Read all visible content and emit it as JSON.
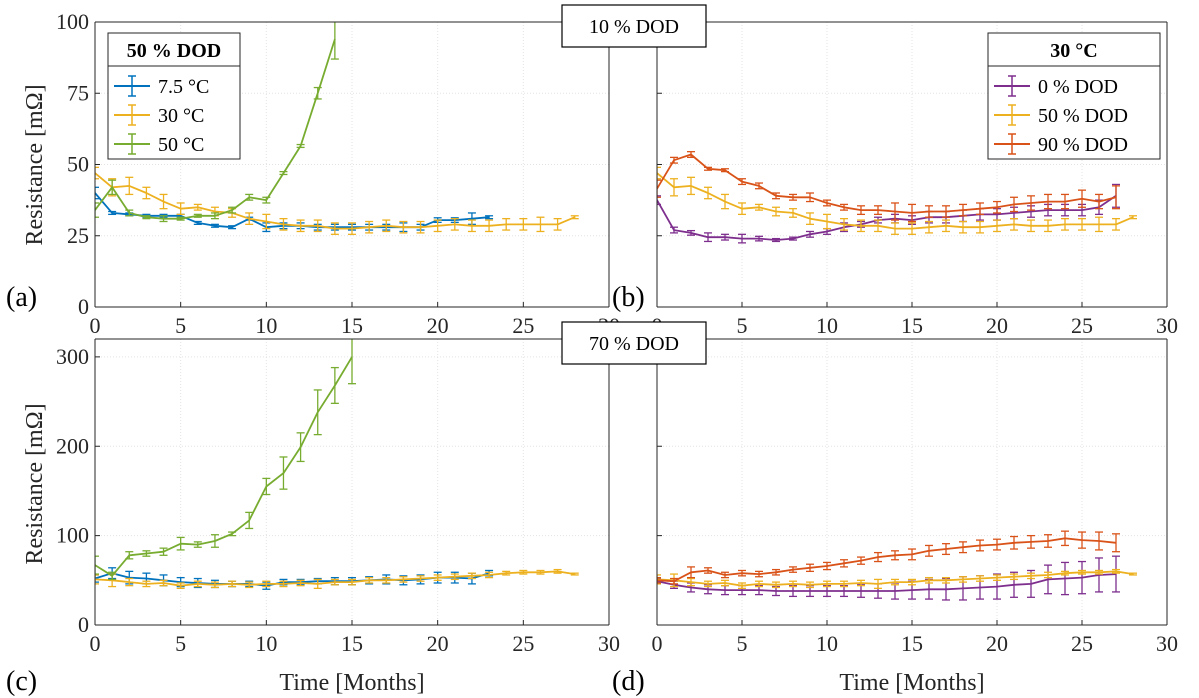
{
  "panel_letters": [
    "(a)",
    "(b)",
    "(c)",
    "(d)"
  ],
  "row_titles": [
    "10 % DOD",
    "70 % DOD"
  ],
  "colors": {
    "blue": "#0072BD",
    "yellow": "#EDB120",
    "green": "#77AC30",
    "orange": "#D95319",
    "purple": "#7E2F8E"
  },
  "chart_data": [
    {
      "type": "line",
      "panel": "(a)",
      "xlabel": "",
      "ylabel": "Resistance [mΩ]",
      "xlim": [
        0,
        30
      ],
      "ylim": [
        0,
        100
      ],
      "xticks": [
        0,
        5,
        10,
        15,
        20,
        25,
        30
      ],
      "yticks": [
        0,
        25,
        50,
        75,
        100
      ],
      "grid": true,
      "legend": {
        "title": "50 % DOD",
        "placement": "top-left"
      },
      "series": [
        {
          "name": "7.5 °C",
          "color": "#0072BD",
          "x": [
            0,
            1,
            2,
            3,
            4,
            5,
            6,
            7,
            8,
            9,
            10,
            11,
            12,
            13,
            14,
            15,
            16,
            17,
            18,
            19,
            20,
            21,
            22,
            23
          ],
          "y": [
            40,
            33,
            32.5,
            32,
            32,
            32,
            29.5,
            28.5,
            28,
            31,
            28,
            28.5,
            28.5,
            28,
            28,
            28,
            28,
            28,
            28,
            28,
            30.5,
            30.5,
            31,
            31.5
          ],
          "err": [
            2,
            0.5,
            0.5,
            0.5,
            0.5,
            0.5,
            0.5,
            0.5,
            0.5,
            0.5,
            1.5,
            1,
            1,
            1,
            1,
            1,
            1,
            1,
            1.5,
            1,
            0.8,
            0.8,
            2,
            0.5
          ]
        },
        {
          "name": "30 °C",
          "color": "#EDB120",
          "x": [
            0,
            1,
            2,
            3,
            4,
            5,
            6,
            7,
            8,
            9,
            10,
            11,
            12,
            13,
            14,
            15,
            16,
            17,
            18,
            19,
            20,
            21,
            22,
            23,
            24,
            25,
            26,
            27,
            28
          ],
          "y": [
            47,
            42,
            42.5,
            40,
            37,
            34.5,
            35,
            33.5,
            33,
            31,
            30,
            29,
            28.5,
            28.5,
            27.5,
            27.5,
            28,
            28.5,
            28,
            28,
            28.5,
            29,
            28.5,
            28.5,
            29,
            29,
            29,
            29,
            31.5
          ],
          "err": [
            2,
            3,
            3,
            2,
            2.5,
            2,
            1,
            1.5,
            1.5,
            2,
            2.5,
            2,
            2,
            2,
            2,
            2,
            2,
            2,
            2,
            2,
            2,
            2,
            2,
            2,
            2,
            2,
            2.5,
            2,
            0.5
          ]
        },
        {
          "name": "50 °C",
          "color": "#77AC30",
          "x": [
            0,
            1,
            2,
            3,
            4,
            5,
            6,
            7,
            8,
            9,
            10,
            11,
            12,
            13,
            14
          ],
          "y": [
            34,
            42,
            33,
            31.5,
            31,
            31,
            32,
            32,
            34,
            38.5,
            37.5,
            47,
            56.5,
            75,
            94
          ],
          "err": [
            2.5,
            2.5,
            1,
            0.5,
            1,
            0.5,
            0.5,
            1,
            1,
            1,
            1,
            0.5,
            0.5,
            2,
            7
          ]
        }
      ]
    },
    {
      "type": "line",
      "panel": "(b)",
      "xlabel": "",
      "ylabel": "",
      "xlim": [
        0,
        30
      ],
      "ylim": [
        0,
        100
      ],
      "xticks": [
        0,
        5,
        10,
        15,
        20,
        25,
        30
      ],
      "yticks": [
        0,
        25,
        50,
        75,
        100
      ],
      "grid": true,
      "legend": {
        "title": "30 °C",
        "placement": "top-right"
      },
      "series": [
        {
          "name": "0 % DOD",
          "color": "#7E2F8E",
          "x": [
            0,
            1,
            2,
            3,
            4,
            5,
            6,
            7,
            8,
            9,
            10,
            11,
            12,
            13,
            14,
            15,
            16,
            17,
            18,
            19,
            20,
            21,
            22,
            23,
            24,
            25,
            26,
            27
          ],
          "y": [
            37.5,
            27,
            26,
            24.5,
            24.5,
            24,
            24,
            23.5,
            24,
            25.5,
            26.5,
            28,
            29,
            30.5,
            31,
            30.5,
            31.5,
            31.5,
            32,
            32.5,
            32.5,
            33,
            33.5,
            34,
            34,
            34,
            35,
            39
          ],
          "err": [
            1.5,
            1,
            0.8,
            1.5,
            1,
            1.5,
            0.8,
            0.5,
            0.5,
            1,
            1,
            1.5,
            1,
            1,
            1.5,
            1.5,
            2,
            2,
            2,
            2,
            2,
            2,
            2,
            2,
            2,
            2,
            2.5,
            4
          ]
        },
        {
          "name": "50 % DOD",
          "color": "#EDB120",
          "x": [
            0,
            1,
            2,
            3,
            4,
            5,
            6,
            7,
            8,
            9,
            10,
            11,
            12,
            13,
            14,
            15,
            16,
            17,
            18,
            19,
            20,
            21,
            22,
            23,
            24,
            25,
            26,
            27,
            28
          ],
          "y": [
            47,
            42,
            42.5,
            40,
            37,
            34.5,
            35,
            33.5,
            33,
            31,
            30,
            29,
            28.5,
            28.5,
            27.5,
            27.5,
            28,
            28.5,
            28,
            28,
            28.5,
            29,
            28.5,
            28.5,
            29,
            29,
            29,
            29,
            31.5
          ],
          "err": [
            2,
            3,
            3,
            2,
            2.5,
            2,
            1,
            1.5,
            1.5,
            2,
            2.5,
            2,
            2,
            2,
            2,
            2,
            2,
            2,
            2,
            2,
            2,
            2,
            2,
            2,
            2,
            2,
            2.5,
            2,
            0.5
          ]
        },
        {
          "name": "90 % DOD",
          "color": "#D95319",
          "x": [
            0,
            1,
            2,
            3,
            4,
            5,
            6,
            7,
            8,
            9,
            10,
            11,
            12,
            13,
            14,
            15,
            16,
            17,
            18,
            19,
            20,
            21,
            22,
            23,
            24,
            25,
            26,
            27
          ],
          "y": [
            41.5,
            51.5,
            53.5,
            48.5,
            48,
            44,
            42.5,
            39,
            38.5,
            38.5,
            36.5,
            35,
            34,
            34,
            33.5,
            33,
            33.5,
            33.5,
            34,
            34.5,
            35,
            36,
            36.5,
            37,
            37,
            38,
            37,
            38.5
          ],
          "err": [
            3,
            1,
            1,
            0.5,
            0.5,
            1,
            1,
            1,
            1,
            1.5,
            1,
            1,
            1.5,
            1.5,
            3,
            3,
            2,
            2,
            2,
            2,
            2,
            2.5,
            2.5,
            2.5,
            2.5,
            3,
            2.5,
            4
          ]
        }
      ]
    },
    {
      "type": "line",
      "panel": "(c)",
      "xlabel": "Time [Months]",
      "ylabel": "Resistance [mΩ]",
      "xlim": [
        0,
        30
      ],
      "ylim": [
        0,
        320
      ],
      "xticks": [
        0,
        5,
        10,
        15,
        20,
        25,
        30
      ],
      "yticks": [
        0,
        100,
        200,
        300
      ],
      "grid": true,
      "series": [
        {
          "name": "",
          "color": "#0072BD",
          "x": [
            0,
            1,
            2,
            3,
            4,
            5,
            6,
            7,
            8,
            9,
            10,
            11,
            12,
            13,
            14,
            15,
            16,
            17,
            18,
            19,
            20,
            21,
            22,
            23
          ],
          "y": [
            52,
            58,
            53,
            52,
            50,
            48,
            47,
            46,
            46,
            46,
            44,
            48,
            48,
            49,
            49,
            49,
            50,
            51,
            50,
            51,
            53,
            53,
            52,
            58
          ],
          "err": [
            4,
            6,
            7,
            6,
            6,
            5,
            5,
            4,
            3,
            3,
            4,
            3,
            3,
            3,
            4,
            4,
            4,
            5,
            5,
            5,
            6,
            6,
            6,
            3
          ]
        },
        {
          "name": "",
          "color": "#EDB120",
          "x": [
            0,
            1,
            2,
            3,
            4,
            5,
            6,
            7,
            8,
            9,
            10,
            11,
            12,
            13,
            14,
            15,
            16,
            17,
            18,
            19,
            20,
            21,
            22,
            23,
            24,
            25,
            26,
            27,
            28
          ],
          "y": [
            51,
            50,
            48,
            46,
            47,
            44,
            46,
            45,
            46,
            45,
            46,
            46,
            47,
            46,
            48,
            48,
            50,
            50,
            51,
            52,
            53,
            54,
            55,
            56,
            58,
            59,
            59,
            60,
            57
          ],
          "err": [
            5,
            7,
            4,
            3,
            3,
            3,
            3,
            3,
            3,
            3,
            3,
            3,
            3,
            5,
            3,
            3,
            3,
            3,
            3,
            3,
            3,
            3,
            3,
            3,
            2,
            2,
            2,
            2,
            1
          ]
        },
        {
          "name": "",
          "color": "#77AC30",
          "x": [
            0,
            1,
            2,
            3,
            4,
            5,
            6,
            7,
            8,
            9,
            10,
            11,
            12,
            13,
            14,
            15
          ],
          "y": [
            67,
            55,
            78,
            80,
            82,
            91,
            90,
            94,
            102,
            117,
            155,
            170,
            199,
            238,
            268,
            300
          ],
          "err": [
            10,
            4,
            4,
            3,
            4,
            7,
            3,
            7,
            2,
            9,
            9,
            18,
            16,
            25,
            20,
            30
          ]
        }
      ]
    },
    {
      "type": "line",
      "panel": "(d)",
      "xlabel": "Time [Months]",
      "ylabel": "",
      "xlim": [
        0,
        30
      ],
      "ylim": [
        0,
        320
      ],
      "xticks": [
        0,
        5,
        10,
        15,
        20,
        25,
        30
      ],
      "yticks": [
        0,
        100,
        200,
        300
      ],
      "grid": true,
      "series": [
        {
          "name": "",
          "color": "#7E2F8E",
          "x": [
            0,
            1,
            2,
            3,
            4,
            5,
            6,
            7,
            8,
            9,
            10,
            11,
            12,
            13,
            14,
            15,
            16,
            17,
            18,
            19,
            20,
            21,
            22,
            23,
            24,
            25,
            26,
            27
          ],
          "y": [
            49,
            45,
            42,
            40,
            39,
            39,
            39,
            38,
            38,
            38,
            38,
            38,
            38,
            38,
            38,
            39,
            40,
            40,
            41,
            42,
            43,
            45,
            46,
            51,
            52,
            53,
            56,
            57
          ],
          "err": [
            3,
            4,
            5,
            5,
            5,
            5,
            5,
            5,
            6,
            6,
            6,
            6,
            7,
            8,
            9,
            10,
            11,
            12,
            13,
            13,
            14,
            14,
            15,
            16,
            18,
            18,
            19,
            20
          ]
        },
        {
          "name": "",
          "color": "#EDB120",
          "x": [
            0,
            1,
            2,
            3,
            4,
            5,
            6,
            7,
            8,
            9,
            10,
            11,
            12,
            13,
            14,
            15,
            16,
            17,
            18,
            19,
            20,
            21,
            22,
            23,
            24,
            25,
            26,
            27,
            28
          ],
          "y": [
            51,
            50,
            48,
            46,
            47,
            44,
            46,
            45,
            46,
            45,
            46,
            46,
            47,
            46,
            48,
            48,
            50,
            50,
            51,
            52,
            53,
            54,
            55,
            56,
            58,
            59,
            59,
            60,
            57
          ],
          "err": [
            5,
            7,
            4,
            3,
            3,
            3,
            3,
            3,
            3,
            3,
            3,
            3,
            3,
            5,
            3,
            3,
            3,
            3,
            3,
            3,
            3,
            3,
            3,
            3,
            2,
            2,
            2,
            2,
            1
          ]
        },
        {
          "name": "",
          "color": "#D95319",
          "x": [
            0,
            1,
            2,
            3,
            4,
            5,
            6,
            7,
            8,
            9,
            10,
            11,
            12,
            13,
            14,
            15,
            16,
            17,
            18,
            19,
            20,
            21,
            22,
            23,
            24,
            25,
            26,
            27
          ],
          "y": [
            50,
            49,
            59,
            61,
            56,
            58,
            57,
            59,
            62,
            64,
            66,
            69,
            72,
            76,
            78,
            79,
            83,
            85,
            87,
            89,
            90,
            92,
            93,
            94,
            97,
            95,
            94,
            92
          ],
          "err": [
            3,
            3,
            6,
            3,
            3,
            3,
            3,
            3,
            3,
            4,
            4,
            4,
            4,
            5,
            5,
            6,
            6,
            6,
            6,
            6,
            6,
            7,
            7,
            7,
            8,
            9,
            10,
            10
          ]
        }
      ]
    }
  ]
}
